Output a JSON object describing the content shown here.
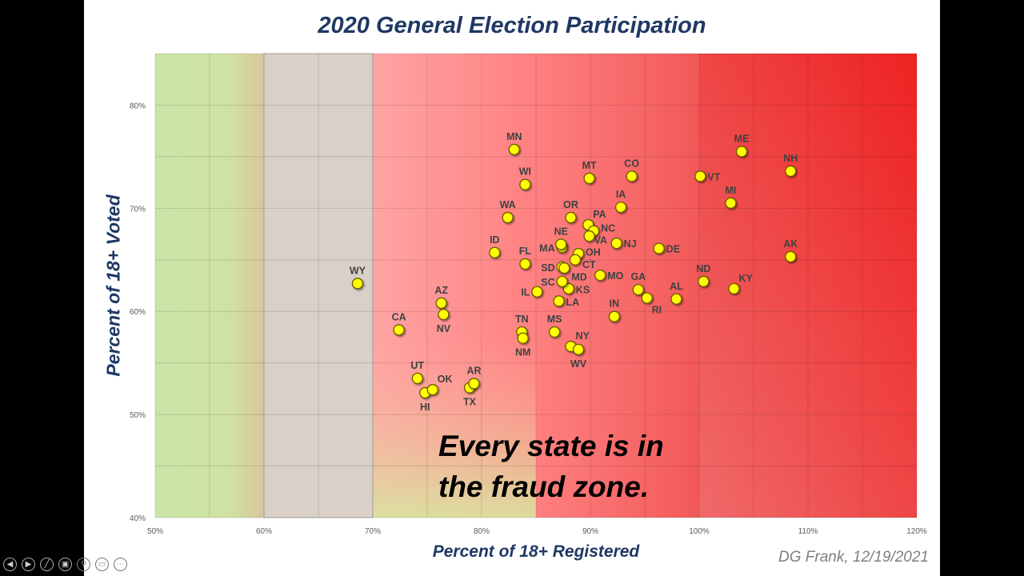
{
  "chart_data": {
    "type": "scatter",
    "title": "2020 General Election Participation",
    "xlabel": "Percent of 18+ Registered",
    "ylabel": "Percent of 18+ Voted",
    "xlim": [
      50,
      120
    ],
    "ylim": [
      40,
      85
    ],
    "x_ticks": [
      "50%",
      "60%",
      "70%",
      "80%",
      "90%",
      "100%",
      "110%",
      "120%"
    ],
    "x_tick_values": [
      50,
      60,
      70,
      80,
      90,
      100,
      110,
      120
    ],
    "y_ticks": [
      "40%",
      "50%",
      "60%",
      "70%",
      "80%"
    ],
    "y_tick_values": [
      40,
      50,
      60,
      70,
      80
    ],
    "grid": true,
    "zones": [
      {
        "from": 50,
        "to": 60,
        "color": "#c6e2a4"
      },
      {
        "from": 60,
        "to": 70,
        "color": "#d9d0c8"
      },
      {
        "from": 70,
        "to": 100,
        "color": "#ff8a8a"
      },
      {
        "from": 100,
        "to": 120,
        "color": "#f03a3a"
      }
    ],
    "marker_color": "#ffff00",
    "marker_edge": "#6b5a00",
    "annotation": [
      "Every state is in",
      "the fraud zone."
    ],
    "points": [
      {
        "label": "WY",
        "x": 68.6,
        "y": 62.7,
        "pos": "top"
      },
      {
        "label": "CA",
        "x": 72.4,
        "y": 58.2,
        "pos": "top"
      },
      {
        "label": "UT",
        "x": 74.1,
        "y": 53.5,
        "pos": "top"
      },
      {
        "label": "HI",
        "x": 74.8,
        "y": 52.1,
        "pos": "bottom"
      },
      {
        "label": "OK",
        "x": 75.5,
        "y": 52.4,
        "pos": "topright"
      },
      {
        "label": "AZ",
        "x": 76.3,
        "y": 60.8,
        "pos": "top"
      },
      {
        "label": "NV",
        "x": 76.5,
        "y": 59.7,
        "pos": "bottom"
      },
      {
        "label": "TX",
        "x": 78.9,
        "y": 52.6,
        "pos": "bottom"
      },
      {
        "label": "AR",
        "x": 79.3,
        "y": 53.0,
        "pos": "top"
      },
      {
        "label": "MN",
        "x": 83.0,
        "y": 75.7,
        "pos": "top"
      },
      {
        "label": "WI",
        "x": 84.0,
        "y": 72.3,
        "pos": "top"
      },
      {
        "label": "WA",
        "x": 82.4,
        "y": 69.1,
        "pos": "top"
      },
      {
        "label": "ID",
        "x": 81.2,
        "y": 65.7,
        "pos": "top"
      },
      {
        "label": "FL",
        "x": 84.0,
        "y": 64.6,
        "pos": "top"
      },
      {
        "label": "IL",
        "x": 85.1,
        "y": 61.9,
        "pos": "left"
      },
      {
        "label": "TN",
        "x": 83.7,
        "y": 58.0,
        "pos": "top"
      },
      {
        "label": "NM",
        "x": 83.8,
        "y": 57.4,
        "pos": "bottom"
      },
      {
        "label": "MS",
        "x": 86.7,
        "y": 58.0,
        "pos": "top"
      },
      {
        "label": "NY",
        "x": 88.2,
        "y": 56.6,
        "pos": "topright"
      },
      {
        "label": "WV",
        "x": 88.9,
        "y": 56.3,
        "pos": "bottom"
      },
      {
        "label": "LA",
        "x": 87.1,
        "y": 61.0,
        "pos": "right"
      },
      {
        "label": "KS",
        "x": 88.0,
        "y": 62.2,
        "pos": "right"
      },
      {
        "label": "SC",
        "x": 87.4,
        "y": 62.9,
        "pos": "left"
      },
      {
        "label": "SD",
        "x": 87.4,
        "y": 64.3,
        "pos": "left"
      },
      {
        "label": "MD",
        "x": 87.6,
        "y": 64.2,
        "pos": "right"
      },
      {
        "label": "MA",
        "x": 87.4,
        "y": 66.2,
        "pos": "left"
      },
      {
        "label": "NE",
        "x": 87.3,
        "y": 66.5,
        "pos": "top"
      },
      {
        "label": "OH",
        "x": 88.9,
        "y": 65.6,
        "pos": "right"
      },
      {
        "label": "CT",
        "x": 88.6,
        "y": 65.0,
        "pos": "right"
      },
      {
        "label": "OR",
        "x": 88.2,
        "y": 69.1,
        "pos": "top"
      },
      {
        "label": "PA",
        "x": 89.8,
        "y": 68.4,
        "pos": "topright"
      },
      {
        "label": "NC",
        "x": 90.3,
        "y": 67.8,
        "pos": "right"
      },
      {
        "label": "VA",
        "x": 89.9,
        "y": 67.3,
        "pos": "bottomright"
      },
      {
        "label": "MT",
        "x": 89.9,
        "y": 72.9,
        "pos": "top"
      },
      {
        "label": "MO",
        "x": 90.9,
        "y": 63.5,
        "pos": "right"
      },
      {
        "label": "IN",
        "x": 92.2,
        "y": 59.5,
        "pos": "top"
      },
      {
        "label": "NJ",
        "x": 92.4,
        "y": 66.6,
        "pos": "right"
      },
      {
        "label": "IA",
        "x": 92.8,
        "y": 70.1,
        "pos": "top"
      },
      {
        "label": "CO",
        "x": 93.8,
        "y": 73.1,
        "pos": "top"
      },
      {
        "label": "GA",
        "x": 94.4,
        "y": 62.1,
        "pos": "top"
      },
      {
        "label": "RI",
        "x": 95.2,
        "y": 61.3,
        "pos": "bottomright"
      },
      {
        "label": "DE",
        "x": 96.3,
        "y": 66.1,
        "pos": "right"
      },
      {
        "label": "AL",
        "x": 97.9,
        "y": 61.2,
        "pos": "top"
      },
      {
        "label": "VT",
        "x": 100.1,
        "y": 73.1,
        "pos": "right"
      },
      {
        "label": "ND",
        "x": 100.4,
        "y": 62.9,
        "pos": "top"
      },
      {
        "label": "MI",
        "x": 102.9,
        "y": 70.5,
        "pos": "top"
      },
      {
        "label": "KY",
        "x": 103.2,
        "y": 62.2,
        "pos": "topright"
      },
      {
        "label": "ME",
        "x": 103.9,
        "y": 75.5,
        "pos": "top"
      },
      {
        "label": "NH",
        "x": 108.4,
        "y": 73.6,
        "pos": "top"
      },
      {
        "label": "AK",
        "x": 108.4,
        "y": 65.3,
        "pos": "top"
      }
    ]
  },
  "credit": "DG Frank, 12/19/2021",
  "toolbar": {
    "icons": [
      "previous-icon",
      "next-icon",
      "pen-icon",
      "slides-icon",
      "zoom-icon",
      "subtitles-icon",
      "more-icon"
    ],
    "glyphs": [
      "◀",
      "▶",
      "╱",
      "▣",
      "⚲",
      "▭",
      "⋯"
    ]
  }
}
